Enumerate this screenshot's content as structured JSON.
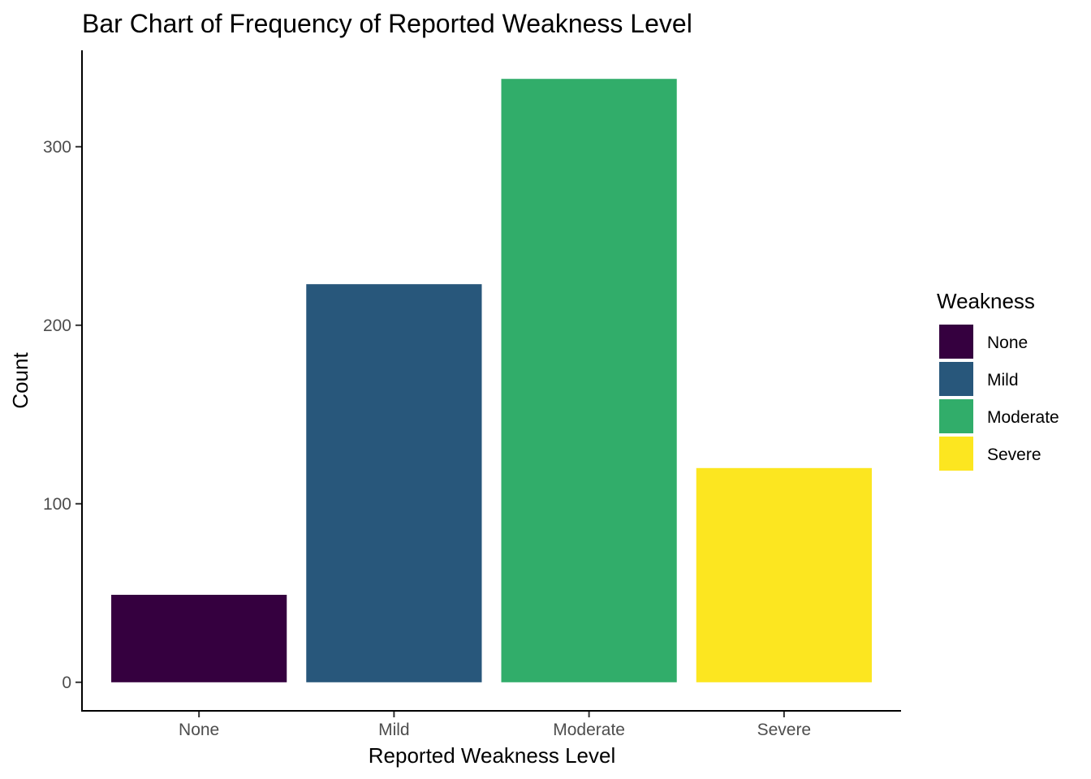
{
  "chart_data": {
    "type": "bar",
    "title": "Bar Chart of Frequency of Reported Weakness Level",
    "xlabel": "Reported Weakness Level",
    "ylabel": "Count",
    "categories": [
      "None",
      "Mild",
      "Moderate",
      "Severe"
    ],
    "values": [
      49,
      223,
      338,
      120
    ],
    "colors": [
      "#35003f",
      "#28577b",
      "#31ad6a",
      "#fce620"
    ],
    "ylim": [
      -16,
      354
    ],
    "yticks": [
      0,
      100,
      200,
      300
    ],
    "grid": false,
    "legend": {
      "title": "Weakness",
      "position": "right",
      "entries": [
        "None",
        "Mild",
        "Moderate",
        "Severe"
      ]
    }
  }
}
